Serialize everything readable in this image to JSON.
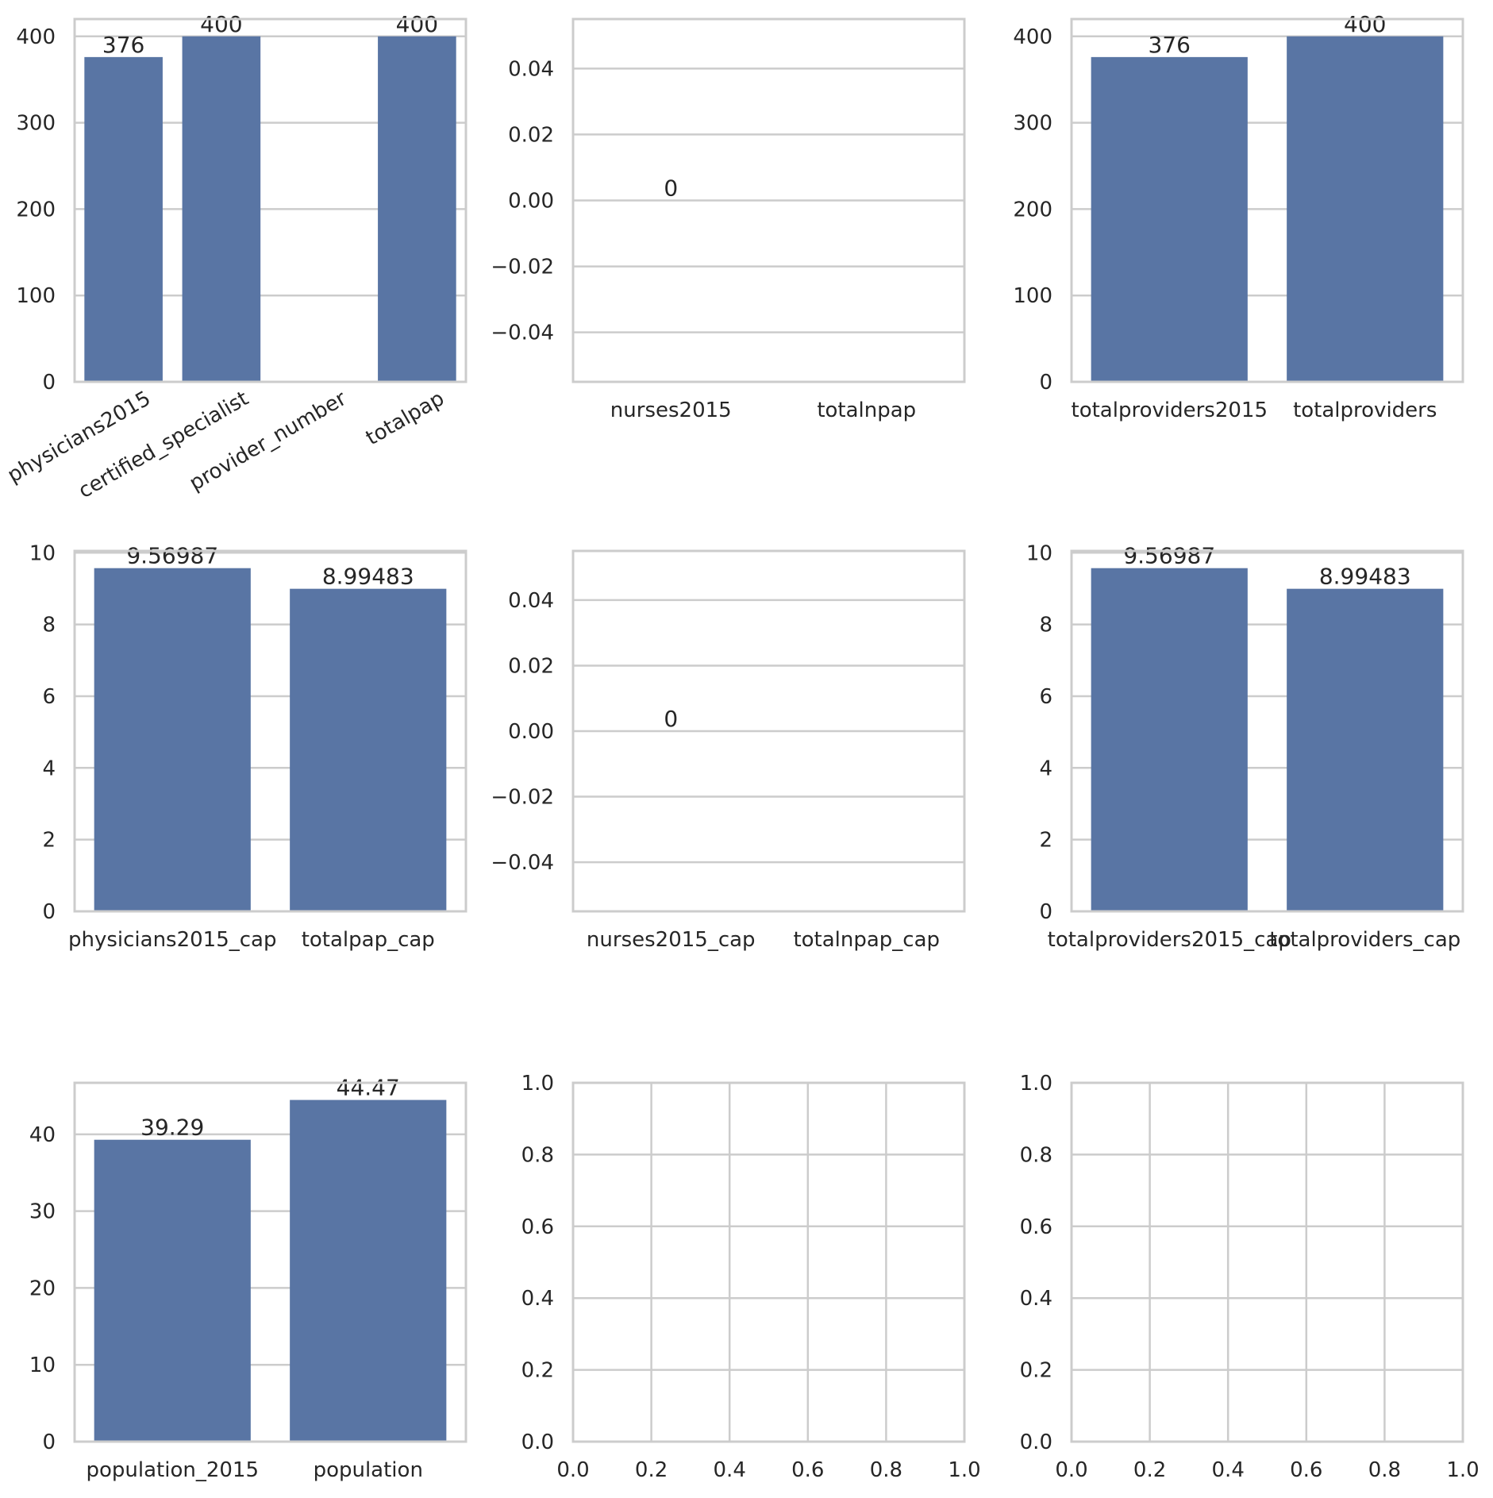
{
  "colors": {
    "bar": "#5975a4",
    "grid": "#cccccc",
    "frame": "#cccccc",
    "text": "#262626"
  },
  "chart_data": [
    {
      "type": "bar",
      "categories": [
        "physicians2015",
        "certified_specialist",
        "provider_number",
        "totalpap"
      ],
      "values": [
        376,
        400,
        0,
        400
      ],
      "data_labels": [
        "376",
        "400",
        "",
        "400"
      ],
      "ylim": [
        0,
        420
      ],
      "yticks": [
        0,
        100,
        200,
        300,
        400
      ],
      "ytick_labels": [
        "0",
        "100",
        "200",
        "300",
        "400"
      ],
      "xtick_rotation": 30,
      "grid": "y"
    },
    {
      "type": "bar",
      "categories": [
        "nurses2015",
        "totalnpap"
      ],
      "values": [
        0,
        0
      ],
      "data_labels": [
        "0",
        ""
      ],
      "ylim": [
        -0.055,
        0.055
      ],
      "yticks": [
        -0.04,
        -0.02,
        0.0,
        0.02,
        0.04
      ],
      "ytick_labels": [
        "−0.04",
        "−0.02",
        "0.00",
        "0.02",
        "0.04"
      ],
      "grid": "y"
    },
    {
      "type": "bar",
      "categories": [
        "totalproviders2015",
        "totalproviders"
      ],
      "values": [
        376,
        400
      ],
      "data_labels": [
        "376",
        "400"
      ],
      "ylim": [
        0,
        420
      ],
      "yticks": [
        0,
        100,
        200,
        300,
        400
      ],
      "ytick_labels": [
        "0",
        "100",
        "200",
        "300",
        "400"
      ],
      "grid": "y"
    },
    {
      "type": "bar",
      "categories": [
        "physicians2015_cap",
        "totalpap_cap"
      ],
      "values": [
        9.56987,
        8.99483
      ],
      "data_labels": [
        "9.56987",
        "8.99483"
      ],
      "ylim": [
        0,
        10.05
      ],
      "yticks": [
        0,
        2,
        4,
        6,
        8,
        10
      ],
      "ytick_labels": [
        "0",
        "2",
        "4",
        "6",
        "8",
        "10"
      ],
      "grid": "y"
    },
    {
      "type": "bar",
      "categories": [
        "nurses2015_cap",
        "totalnpap_cap"
      ],
      "values": [
        0,
        0
      ],
      "data_labels": [
        "0",
        ""
      ],
      "ylim": [
        -0.055,
        0.055
      ],
      "yticks": [
        -0.04,
        -0.02,
        0.0,
        0.02,
        0.04
      ],
      "ytick_labels": [
        "−0.04",
        "−0.02",
        "0.00",
        "0.02",
        "0.04"
      ],
      "grid": "y"
    },
    {
      "type": "bar",
      "categories": [
        "totalproviders2015_cap",
        "totalproviders_cap"
      ],
      "values": [
        9.56987,
        8.99483
      ],
      "data_labels": [
        "9.56987",
        "8.99483"
      ],
      "ylim": [
        0,
        10.05
      ],
      "yticks": [
        0,
        2,
        4,
        6,
        8,
        10
      ],
      "ytick_labels": [
        "0",
        "2",
        "4",
        "6",
        "8",
        "10"
      ],
      "grid": "y"
    },
    {
      "type": "bar",
      "categories": [
        "population_2015",
        "population"
      ],
      "values": [
        39.29,
        44.47
      ],
      "data_labels": [
        "39.29",
        "44.47"
      ],
      "ylim": [
        0,
        46.7
      ],
      "yticks": [
        0,
        10,
        20,
        30,
        40
      ],
      "ytick_labels": [
        "0",
        "10",
        "20",
        "30",
        "40"
      ],
      "grid": "y"
    },
    {
      "type": "empty",
      "xlim": [
        0,
        1
      ],
      "ylim": [
        0,
        1
      ],
      "xticks": [
        0,
        0.2,
        0.4,
        0.6,
        0.8,
        1.0
      ],
      "xtick_labels": [
        "0.0",
        "0.2",
        "0.4",
        "0.6",
        "0.8",
        "1.0"
      ],
      "yticks": [
        0,
        0.2,
        0.4,
        0.6,
        0.8,
        1.0
      ],
      "ytick_labels": [
        "0.0",
        "0.2",
        "0.4",
        "0.6",
        "0.8",
        "1.0"
      ],
      "grid": "both"
    },
    {
      "type": "empty",
      "xlim": [
        0,
        1
      ],
      "ylim": [
        0,
        1
      ],
      "xticks": [
        0,
        0.2,
        0.4,
        0.6,
        0.8,
        1.0
      ],
      "xtick_labels": [
        "0.0",
        "0.2",
        "0.4",
        "0.6",
        "0.8",
        "1.0"
      ],
      "yticks": [
        0,
        0.2,
        0.4,
        0.6,
        0.8,
        1.0
      ],
      "ytick_labels": [
        "0.0",
        "0.2",
        "0.4",
        "0.6",
        "0.8",
        "1.0"
      ],
      "grid": "both"
    }
  ]
}
